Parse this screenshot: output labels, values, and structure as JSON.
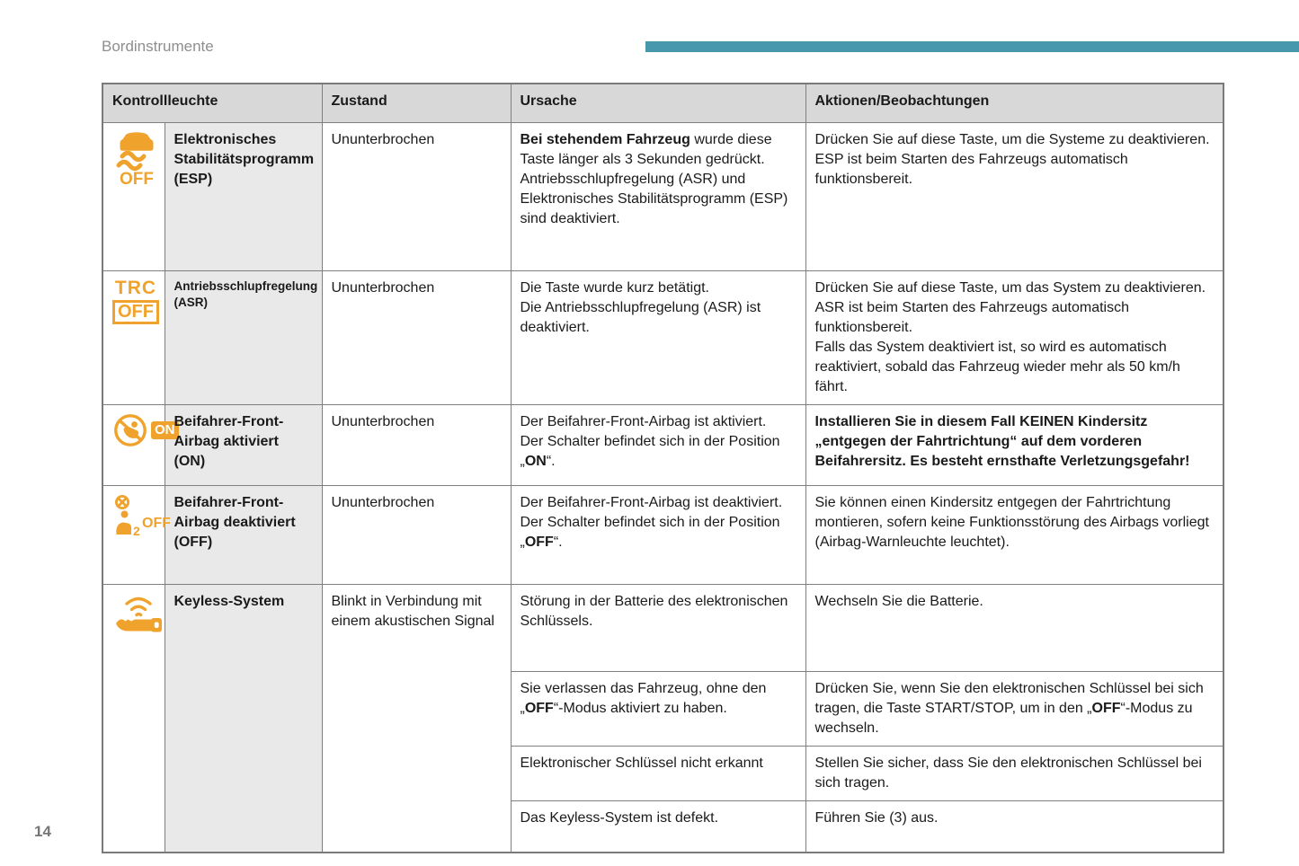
{
  "page": {
    "breadcrumb": "Bordinstrumente",
    "page_number": "14"
  },
  "colors": {
    "accent_bar": "#4798ad",
    "indicator_orange": "#f0a32c",
    "header_bg": "#d8d8d8",
    "label_bg": "#e9e9e9"
  },
  "table": {
    "header": {
      "indicator": "Kontrollleuchte",
      "state": "Zustand",
      "cause": "Ursache",
      "actions": "Aktionen/Beobachtungen"
    },
    "rows": [
      {
        "icon": "esp-off-indicator-icon",
        "icon_text": "OFF",
        "label": "Elektronisches Stabilitätsprogramm (ESP)",
        "state": "Ununterbrochen",
        "cause": [
          {
            "t": "Bei stehendem Fahrzeug",
            "b": true
          },
          {
            "t": " wurde diese Taste länger als 3 Sekunden gedrückt.\nAntriebsschlupfregelung (ASR) und Elektronisches Stabilitätsprogramm (ESP) sind deaktiviert."
          }
        ],
        "actions": [
          {
            "t": "Drücken Sie auf diese Taste, um die Systeme zu deaktivieren.\nESP ist beim Starten des Fahrzeugs automatisch funktionsbereit."
          }
        ]
      },
      {
        "icon": "trc-off-indicator-icon",
        "icon_text_top": "TRC",
        "icon_text_bottom": "OFF",
        "label": "Antriebsschlupfregelung (ASR)",
        "state": "Ununterbrochen",
        "cause": [
          {
            "t": "Die Taste wurde kurz betätigt.\nDie Antriebsschlupfregelung (ASR) ist deaktiviert."
          }
        ],
        "actions": [
          {
            "t": "Drücken Sie auf diese Taste, um das System zu deaktivieren.\nASR ist beim Starten des Fahrzeugs automatisch funktionsbereit.\nFalls das System deaktiviert ist, so wird es automatisch reaktiviert, sobald das Fahrzeug wieder mehr als 50 km/h fährt."
          }
        ]
      },
      {
        "icon": "passenger-airbag-on-indicator-icon",
        "icon_badge": "ON",
        "label": "Beifahrer-Front-Airbag aktiviert (ON)",
        "state": "Ununterbrochen",
        "cause": [
          {
            "t": "Der Beifahrer-Front-Airbag ist aktiviert.\nDer Schalter befindet sich in der Position „"
          },
          {
            "t": "ON",
            "b": true
          },
          {
            "t": "“."
          }
        ],
        "actions": [
          {
            "t": "Installieren Sie in diesem Fall KEINEN Kindersitz „entgegen der Fahrtrichtung“ auf dem vorderen Beifahrersitz. Es besteht ernsthafte Verletzungsgefahr!",
            "b": true
          }
        ]
      },
      {
        "icon": "passenger-airbag-off-indicator-icon",
        "icon_text_num": "2",
        "icon_text_off": "OFF",
        "label": "Beifahrer-Front-Airbag deaktiviert (OFF)",
        "state": "Ununterbrochen",
        "cause": [
          {
            "t": "Der Beifahrer-Front-Airbag ist deaktiviert.\nDer Schalter befindet sich in der Position „"
          },
          {
            "t": "OFF",
            "b": true
          },
          {
            "t": "“."
          }
        ],
        "actions": [
          {
            "t": "Sie können einen Kindersitz entgegen der Fahrtrichtung montieren, sofern keine Funktionsstörung des Airbags vorliegt (Airbag-Warnleuchte leuchtet)."
          }
        ]
      }
    ],
    "keyless": {
      "icon": "keyless-system-indicator-icon",
      "label": "Keyless-System",
      "state": "Blinkt in Verbindung mit einem akustischen Signal",
      "subrows": [
        {
          "cause": [
            {
              "t": "Störung in der Batterie des elektronischen Schlüssels."
            }
          ],
          "actions": [
            {
              "t": "Wechseln Sie die Batterie."
            }
          ]
        },
        {
          "cause": [
            {
              "t": "Sie verlassen das Fahrzeug, ohne den „"
            },
            {
              "t": "OFF",
              "b": true
            },
            {
              "t": "“-Modus aktiviert zu haben."
            }
          ],
          "actions": [
            {
              "t": "Drücken Sie, wenn Sie den elektronischen Schlüssel bei sich tragen, die Taste START/STOP, um in den „"
            },
            {
              "t": "OFF",
              "b": true
            },
            {
              "t": "“-Modus zu wechseln."
            }
          ]
        },
        {
          "cause": [
            {
              "t": "Elektronischer Schlüssel nicht erkannt"
            }
          ],
          "actions": [
            {
              "t": "Stellen Sie sicher, dass Sie den elektronischen Schlüssel bei sich tragen."
            }
          ]
        },
        {
          "cause": [
            {
              "t": "Das Keyless-System ist defekt."
            }
          ],
          "actions": [
            {
              "t": "Führen Sie (3) aus."
            }
          ]
        }
      ]
    }
  }
}
